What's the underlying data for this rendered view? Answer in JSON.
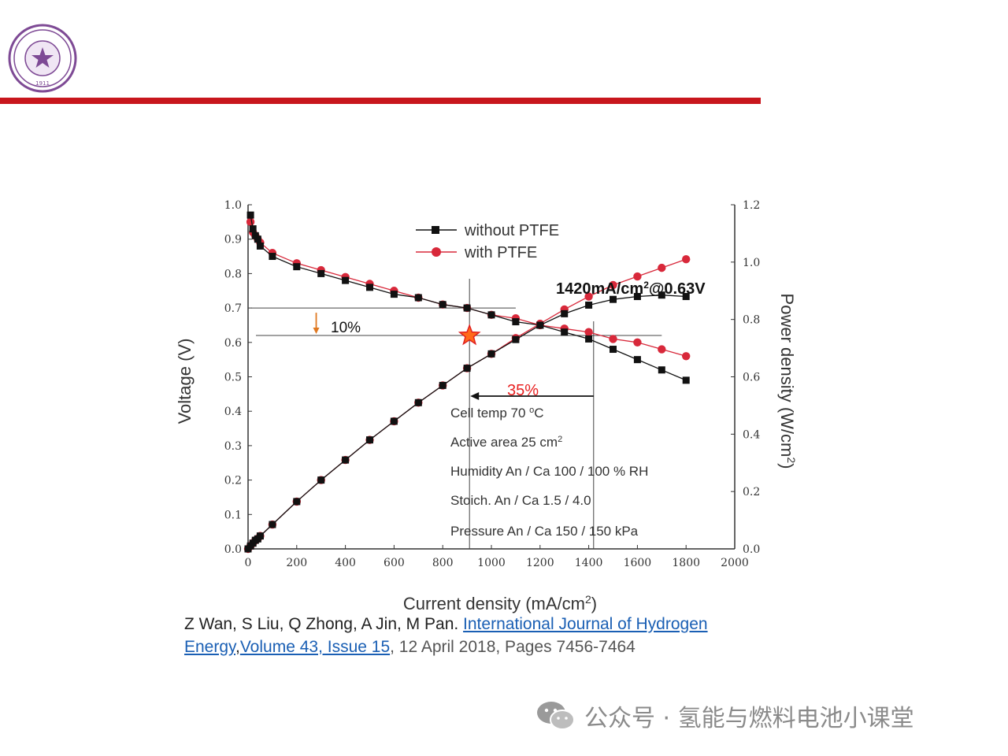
{
  "logo": {
    "icon": "tsinghua-university-seal",
    "text": "1911"
  },
  "colors": {
    "accent_red": "#c8161d",
    "series_black": "#111111",
    "series_red": "#d8283a",
    "link": "#1a5fb4"
  },
  "chart_data": {
    "type": "line",
    "xlabel": "Current density (mA/cm",
    "xlabel_sup": "2",
    "xlabel_end": ")",
    "ylabel_left": "Voltage (V)",
    "ylabel_right": "Power density (W/cm",
    "ylabel_right_sup": "2",
    "ylabel_right_end": ")",
    "xlim": [
      0,
      2000
    ],
    "ylim_left": [
      0,
      1.0
    ],
    "ylim_right": [
      0,
      1.2
    ],
    "x_ticks": [
      "0",
      "200",
      "400",
      "600",
      "800",
      "1000",
      "1200",
      "1400",
      "1600",
      "1800",
      "2000"
    ],
    "y_left_ticks": [
      "0.0",
      "0.1",
      "0.2",
      "0.3",
      "0.4",
      "0.5",
      "0.6",
      "0.7",
      "0.8",
      "0.9",
      "1.0"
    ],
    "y_right_ticks": [
      "0.0",
      "0.2",
      "0.4",
      "0.6",
      "0.8",
      "1.0",
      "1.2"
    ],
    "legend_position": "top-center",
    "series": [
      {
        "name": "without PTFE",
        "marker": "square",
        "color": "#111111",
        "axis": "left",
        "kind": "voltage",
        "x": [
          10,
          20,
          30,
          40,
          50,
          100,
          200,
          300,
          400,
          500,
          600,
          700,
          800,
          900,
          1000,
          1100,
          1200,
          1300,
          1400,
          1500,
          1600,
          1700,
          1800
        ],
        "y": [
          0.97,
          0.93,
          0.91,
          0.9,
          0.88,
          0.85,
          0.82,
          0.8,
          0.78,
          0.76,
          0.74,
          0.73,
          0.71,
          0.7,
          0.68,
          0.66,
          0.65,
          0.63,
          0.61,
          0.58,
          0.55,
          0.52,
          0.49
        ]
      },
      {
        "name": "with PTFE",
        "marker": "circle",
        "color": "#d8283a",
        "axis": "left",
        "kind": "voltage",
        "x": [
          10,
          20,
          30,
          40,
          50,
          100,
          200,
          300,
          400,
          500,
          600,
          700,
          800,
          900,
          1000,
          1100,
          1200,
          1300,
          1400,
          1500,
          1600,
          1700,
          1800
        ],
        "y": [
          0.95,
          0.92,
          0.91,
          0.9,
          0.89,
          0.86,
          0.83,
          0.81,
          0.79,
          0.77,
          0.75,
          0.73,
          0.71,
          0.7,
          0.68,
          0.67,
          0.65,
          0.64,
          0.63,
          0.61,
          0.6,
          0.58,
          0.56
        ]
      },
      {
        "name": "without PTFE",
        "marker": "square",
        "color": "#111111",
        "axis": "right",
        "kind": "power",
        "x": [
          0,
          10,
          20,
          30,
          40,
          50,
          100,
          200,
          300,
          400,
          500,
          600,
          700,
          800,
          900,
          1000,
          1100,
          1200,
          1300,
          1400,
          1500,
          1600,
          1700,
          1800
        ],
        "y": [
          0,
          0.01,
          0.02,
          0.03,
          0.035,
          0.045,
          0.085,
          0.165,
          0.24,
          0.31,
          0.38,
          0.445,
          0.51,
          0.57,
          0.63,
          0.68,
          0.73,
          0.78,
          0.82,
          0.85,
          0.87,
          0.88,
          0.885,
          0.88
        ]
      },
      {
        "name": "with PTFE",
        "marker": "circle",
        "color": "#d8283a",
        "axis": "right",
        "kind": "power",
        "x": [
          0,
          10,
          20,
          30,
          40,
          50,
          100,
          200,
          300,
          400,
          500,
          600,
          700,
          800,
          900,
          1000,
          1100,
          1200,
          1300,
          1400,
          1500,
          1600,
          1700,
          1800
        ],
        "y": [
          0,
          0.01,
          0.02,
          0.03,
          0.035,
          0.045,
          0.085,
          0.165,
          0.24,
          0.31,
          0.38,
          0.445,
          0.51,
          0.57,
          0.63,
          0.68,
          0.735,
          0.785,
          0.835,
          0.88,
          0.92,
          0.95,
          0.98,
          1.01
        ]
      }
    ],
    "annotations": {
      "peak_label": "1420mA/cm",
      "peak_label_sup": "2",
      "peak_label_end": "@0.63V",
      "voltage_drop_label": "10%",
      "current_gain_label": "35%",
      "ref_voltage_high": 0.7,
      "ref_voltage_low": 0.62,
      "ref_current_a": 910,
      "ref_current_b": 1420,
      "star_point": {
        "x": 910,
        "y": 0.62
      },
      "conditions": [
        [
          "Cell temp 70 ",
          "o",
          "C"
        ],
        [
          "Active area 25 cm",
          "2",
          ""
        ],
        [
          "Humidity An / Ca 100 / 100 % RH",
          "",
          ""
        ],
        [
          "Stoich. An / Ca 1.5 / 4.0",
          "",
          ""
        ],
        [
          "Pressure An / Ca 150  / 150 kPa",
          "",
          ""
        ]
      ]
    }
  },
  "citation": {
    "authors": "Z Wan, S Liu, Q Zhong, A Jin, M Pan. ",
    "journal_link": "International Journal of Hydrogen Energy",
    "comma": ",",
    "volume_link": "Volume 43, Issue 15",
    "rest": ", 12 April 2018, Pages 7456-7464"
  },
  "watermark": {
    "icon": "wechat-icon",
    "text": "公众号 · 氢能与燃料电池小课堂"
  }
}
